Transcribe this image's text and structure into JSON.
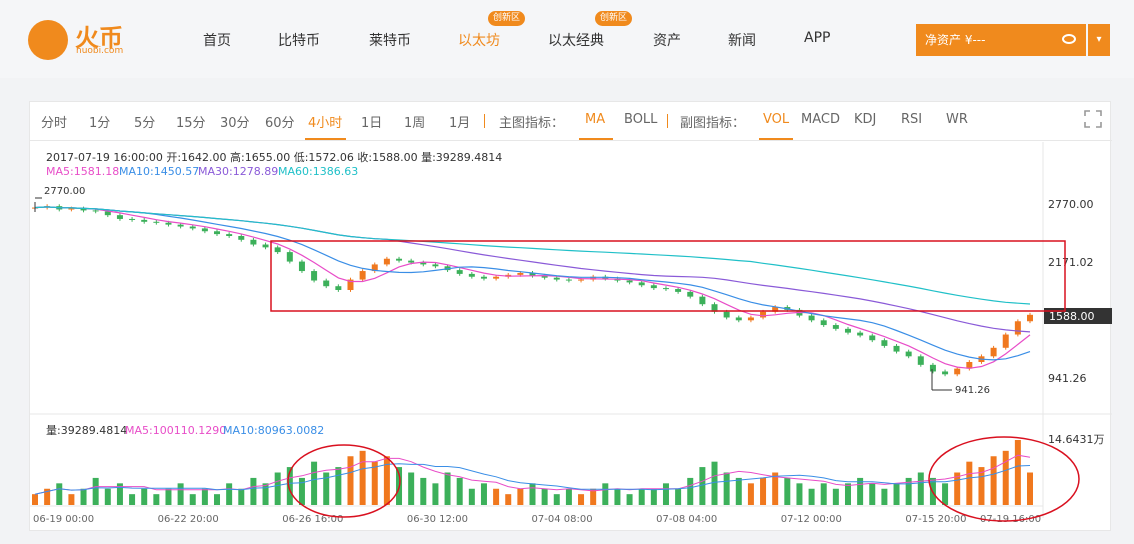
{
  "header": {
    "logo_text": "火币",
    "logo_sub": "huobi.com",
    "nav": [
      {
        "label": "首页",
        "active": false,
        "badge": ""
      },
      {
        "label": "比特币",
        "active": false,
        "badge": ""
      },
      {
        "label": "莱特币",
        "active": false,
        "badge": ""
      },
      {
        "label": "以太坊",
        "active": true,
        "badge": "创新区"
      },
      {
        "label": "以太经典",
        "active": false,
        "badge": "创新区"
      },
      {
        "label": "资产",
        "active": false,
        "badge": ""
      },
      {
        "label": "新闻",
        "active": false,
        "badge": ""
      },
      {
        "label": "APP",
        "active": false,
        "badge": ""
      }
    ],
    "asset_label": "净资产 ¥---",
    "asset_icon": "eye-hidden-icon",
    "dropdown_icon": "chevron-down-icon",
    "accent": "#f08a1d"
  },
  "toolbar": {
    "periods": [
      "分时",
      "1分",
      "5分",
      "15分",
      "30分",
      "60分",
      "4小时",
      "1日",
      "1周",
      "1月"
    ],
    "active_period": "4小时",
    "main_indicator_label": "主图指标：",
    "main_indicators": [
      "MA",
      "BOLL"
    ],
    "active_main": "MA",
    "sub_indicator_label": "副图指标：",
    "sub_indicators": [
      "VOL",
      "MACD",
      "KDJ",
      "RSI",
      "WR"
    ],
    "active_sub": "VOL",
    "fullscreen_icon": "fullscreen-icon"
  },
  "info": {
    "line1": "2017-07-19 16:00:00  开:1642.00  高:1655.00  低:1572.06  收:1588.00  量:39289.4814",
    "ma": [
      {
        "label": "MA5:1581.18",
        "color": "#e84dc8"
      },
      {
        "label": "MA10:1450.57",
        "color": "#3a8ee6"
      },
      {
        "label": "MA30:1278.89",
        "color": "#8a5ad8"
      },
      {
        "label": "MA60:1386.63",
        "color": "#20c0c8"
      }
    ],
    "vol_line": [
      {
        "label": "量:39289.4814",
        "color": "#333333"
      },
      {
        "label": "MA5:100110.1290",
        "color": "#e84dc8"
      },
      {
        "label": "MA10:80963.0082",
        "color": "#3a8ee6"
      }
    ]
  },
  "chart_data": {
    "type": "candlestick",
    "price_axis_labels": [
      "2770.00",
      "2171.02",
      "941.26"
    ],
    "current_price": "1588.00",
    "high_marker": "2770.00",
    "low_marker": "941.26",
    "volume_axis_label": "14.6431万",
    "x_labels": [
      "06-19 00:00",
      "06-22 20:00",
      "06-26 16:00",
      "06-30 12:00",
      "07-04 08:00",
      "07-08 04:00",
      "07-12 00:00",
      "07-15 20:00",
      "07-19 16:00"
    ],
    "up_color": "#f0781e",
    "down_color": "#3cb05a",
    "close_series": [
      2720,
      2735,
      2700,
      2710,
      2690,
      2680,
      2640,
      2600,
      2590,
      2570,
      2560,
      2540,
      2520,
      2500,
      2470,
      2440,
      2420,
      2380,
      2330,
      2300,
      2250,
      2150,
      2050,
      1950,
      1890,
      1850,
      1960,
      2050,
      2120,
      2180,
      2160,
      2140,
      2120,
      2100,
      2060,
      2020,
      1990,
      1970,
      1990,
      2010,
      2030,
      2000,
      1980,
      1960,
      1950,
      1960,
      1990,
      1970,
      1950,
      1930,
      1900,
      1870,
      1860,
      1830,
      1780,
      1700,
      1620,
      1560,
      1530,
      1560,
      1620,
      1670,
      1640,
      1580,
      1530,
      1480,
      1440,
      1400,
      1370,
      1320,
      1260,
      1200,
      1150,
      1060,
      990,
      960,
      1020,
      1090,
      1150,
      1240,
      1380,
      1520,
      1588
    ],
    "volume_series": [
      2,
      3,
      4,
      2,
      3,
      5,
      3,
      4,
      2,
      3,
      2,
      3,
      4,
      2,
      3,
      2,
      4,
      3,
      5,
      4,
      6,
      7,
      5,
      8,
      6,
      7,
      9,
      10,
      8,
      9,
      7,
      6,
      5,
      4,
      6,
      5,
      3,
      4,
      3,
      2,
      3,
      4,
      3,
      2,
      3,
      2,
      3,
      4,
      3,
      2,
      3,
      3,
      4,
      3,
      5,
      7,
      8,
      6,
      5,
      4,
      5,
      6,
      5,
      4,
      3,
      4,
      3,
      4,
      5,
      4,
      3,
      4,
      5,
      6,
      5,
      4,
      6,
      8,
      7,
      9,
      10,
      12,
      6
    ],
    "annotations": [
      "red rectangle around 06-26 to 07-19 price range",
      "red ellipse around 06-26 volume",
      "red ellipse around 07-15 to 07-19 volume"
    ]
  }
}
